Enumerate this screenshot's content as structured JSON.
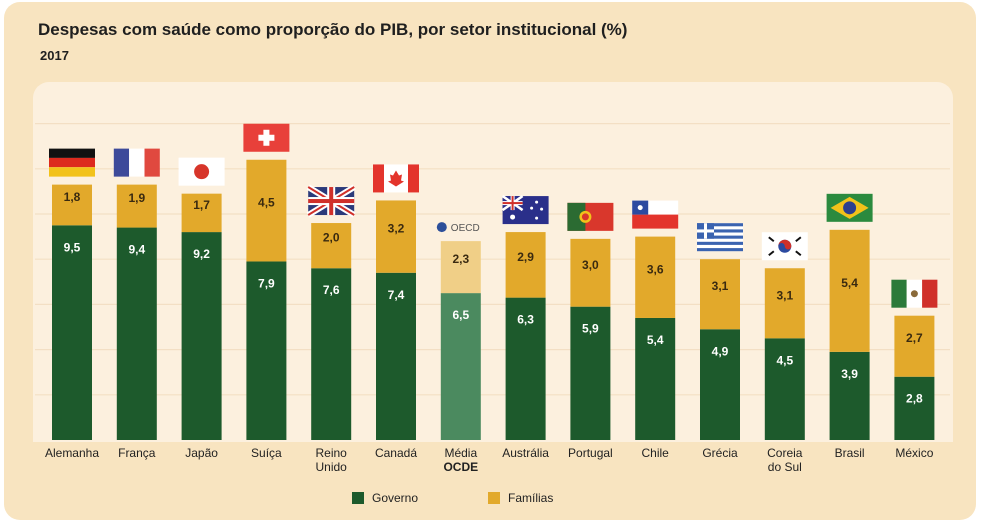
{
  "title": "Despesas com saúde como proporção do PIB, por setor institucional (%)",
  "subtitle": "2017",
  "oecd_logo_text": "OECD",
  "colors": {
    "governo": "#1d5a2c",
    "familias": "#e2a92b",
    "oecd_governo": "#4b8a5f",
    "oecd_familias": "#f0cf87"
  },
  "chart_data": {
    "type": "bar",
    "stacked": true,
    "title": "Despesas com saúde como proporção do PIB, por setor institucional (%)",
    "subtitle": "2017",
    "categories": [
      "Alemanha",
      "França",
      "Japão",
      "Suíça",
      "Reino Unido",
      "Canadá",
      "Média OCDE",
      "Austrália",
      "Portugal",
      "Chile",
      "Grécia",
      "Coreia do Sul",
      "Brasil",
      "México"
    ],
    "flags": [
      "germany-flag",
      "france-flag",
      "japan-flag",
      "switzerland-flag",
      "uk-flag",
      "canada-flag",
      "oecd-logo",
      "australia-flag",
      "portugal-flag",
      "chile-flag",
      "greece-flag",
      "south-korea-flag",
      "brazil-flag",
      "mexico-flag"
    ],
    "series": [
      {
        "name": "Governo",
        "values": [
          9.5,
          9.4,
          9.2,
          7.9,
          7.6,
          7.4,
          6.5,
          6.3,
          5.9,
          5.4,
          4.9,
          4.5,
          3.9,
          2.8
        ]
      },
      {
        "name": "Famílias",
        "values": [
          1.8,
          1.9,
          1.7,
          4.5,
          2.0,
          3.2,
          2.3,
          2.9,
          3.0,
          3.6,
          3.1,
          3.1,
          5.4,
          2.7
        ]
      }
    ],
    "ylim": [
      0,
      14
    ],
    "grid": true,
    "legend": "bottom"
  },
  "legend": {
    "governo": "Governo",
    "familias": "Famílias"
  }
}
